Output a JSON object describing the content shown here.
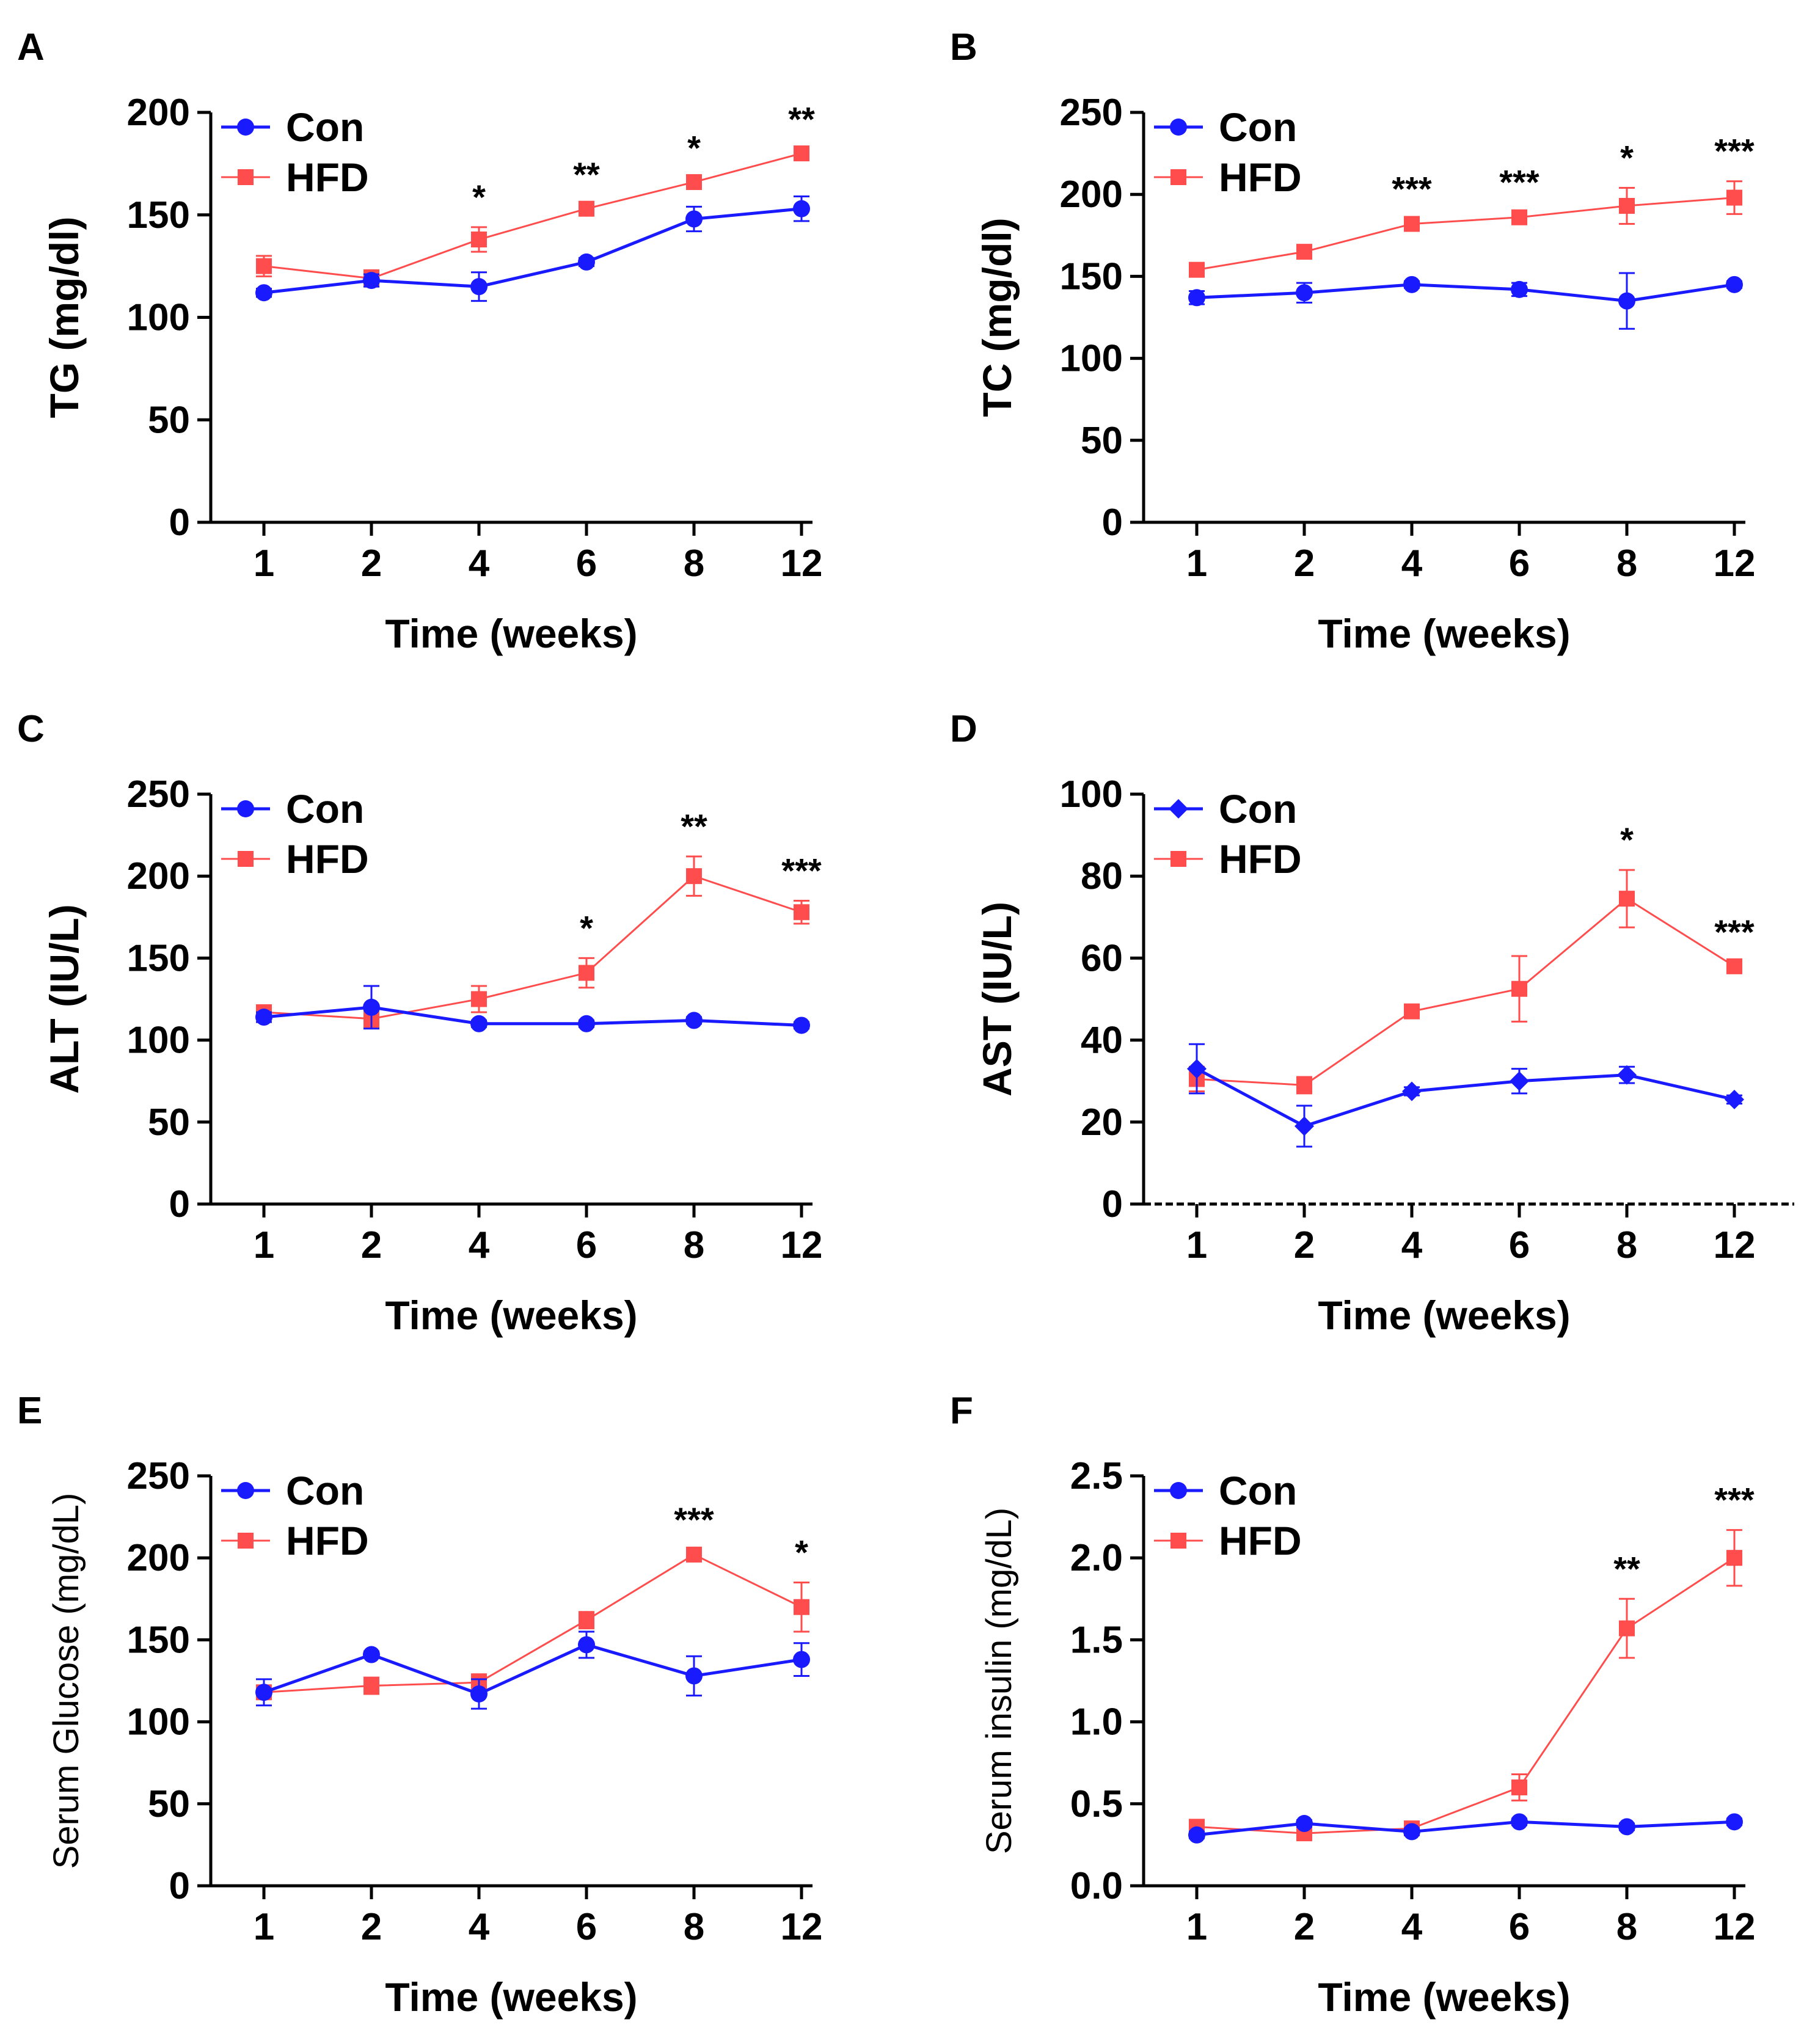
{
  "chart_data": [
    {
      "panel": "A",
      "type": "line",
      "xlabel": "Time (weeks)",
      "ylabel": "TG (mg/dl)",
      "categories": [
        "1",
        "2",
        "4",
        "6",
        "8",
        "12"
      ],
      "ylim": [
        0,
        200
      ],
      "yticks": [
        "0",
        "50",
        "100",
        "150",
        "200"
      ],
      "legend": "top-left",
      "series": [
        {
          "name": "Con",
          "color": "#1a1aff",
          "marker": "circle",
          "values": [
            112,
            118,
            115,
            127,
            148,
            153
          ],
          "errors": [
            2,
            3,
            7,
            2,
            6,
            6
          ]
        },
        {
          "name": "HFD",
          "color": "#ff4d4d",
          "marker": "square",
          "values": [
            125,
            119,
            138,
            153,
            166,
            180
          ],
          "errors": [
            5,
            4,
            6,
            2,
            2,
            2
          ]
        }
      ],
      "significance": [
        "",
        "",
        "*",
        "**",
        "*",
        "**"
      ]
    },
    {
      "panel": "B",
      "type": "line",
      "xlabel": "Time (weeks)",
      "ylabel": "TC (mg/dl)",
      "categories": [
        "1",
        "2",
        "4",
        "6",
        "8",
        "12"
      ],
      "ylim": [
        0,
        250
      ],
      "yticks": [
        "0",
        "50",
        "100",
        "150",
        "200",
        "250"
      ],
      "legend": "top-left",
      "series": [
        {
          "name": "Con",
          "color": "#1a1aff",
          "marker": "circle",
          "values": [
            137,
            140,
            145,
            142,
            135,
            145
          ],
          "errors": [
            4,
            6,
            2,
            4,
            17,
            2
          ]
        },
        {
          "name": "HFD",
          "color": "#ff4d4d",
          "marker": "square",
          "values": [
            154,
            165,
            182,
            186,
            193,
            198
          ],
          "errors": [
            2,
            2,
            3,
            3,
            11,
            10
          ]
        }
      ],
      "significance": [
        "",
        "",
        "***",
        "***",
        "*",
        "***"
      ]
    },
    {
      "panel": "C",
      "type": "line",
      "xlabel": "Time (weeks)",
      "ylabel": "ALT (IU/L)",
      "categories": [
        "1",
        "2",
        "4",
        "6",
        "8",
        "12"
      ],
      "ylim": [
        0,
        250
      ],
      "yticks": [
        "0",
        "50",
        "100",
        "150",
        "200",
        "250"
      ],
      "legend": "top-left",
      "series": [
        {
          "name": "Con",
          "color": "#1a1aff",
          "marker": "circle",
          "values": [
            114,
            120,
            110,
            110,
            112,
            109
          ],
          "errors": [
            3,
            13,
            2,
            2,
            2,
            2
          ]
        },
        {
          "name": "HFD",
          "color": "#ff4d4d",
          "marker": "square",
          "values": [
            117,
            113,
            125,
            141,
            200,
            178
          ],
          "errors": [
            2,
            5,
            8,
            9,
            12,
            7
          ]
        }
      ],
      "significance": [
        "",
        "",
        "",
        "*",
        "**",
        "***"
      ]
    },
    {
      "panel": "D",
      "type": "line",
      "xlabel": "Time (weeks)",
      "ylabel": "AST (IU/L)",
      "categories": [
        "1",
        "2",
        "4",
        "6",
        "8",
        "12"
      ],
      "ylim": [
        0,
        100
      ],
      "yticks": [
        "0",
        "20",
        "40",
        "60",
        "80",
        "100"
      ],
      "legend": "top-left",
      "series": [
        {
          "name": "Con",
          "color": "#1a1aff",
          "marker": "diamond",
          "values": [
            33,
            19,
            27.5,
            30,
            31.5,
            25.5
          ],
          "errors": [
            6,
            5,
            1,
            3,
            2,
            1
          ]
        },
        {
          "name": "HFD",
          "color": "#ff4d4d",
          "marker": "square",
          "values": [
            30.5,
            29,
            47,
            52.5,
            74.5,
            58
          ],
          "errors": [
            3,
            2,
            1,
            8,
            7,
            1
          ]
        }
      ],
      "significance": [
        "",
        "",
        "",
        "",
        "*",
        "***"
      ]
    },
    {
      "panel": "E",
      "type": "line",
      "xlabel": "Time (weeks)",
      "ylabel": "Serum Glucose (mg/dL)",
      "categories": [
        "1",
        "2",
        "4",
        "6",
        "8",
        "12"
      ],
      "ylim": [
        0,
        250
      ],
      "yticks": [
        "0",
        "50",
        "100",
        "150",
        "200",
        "250"
      ],
      "legend": "top-left",
      "series": [
        {
          "name": "Con",
          "color": "#1a1aff",
          "marker": "circle",
          "values": [
            118,
            141,
            117,
            147,
            128,
            138
          ],
          "errors": [
            8,
            2,
            9,
            8,
            12,
            10
          ]
        },
        {
          "name": "HFD",
          "color": "#ff4d4d",
          "marker": "square",
          "values": [
            118,
            122,
            124,
            162,
            202,
            170
          ],
          "errors": [
            4,
            5,
            5,
            5,
            3,
            15
          ]
        }
      ],
      "significance": [
        "",
        "",
        "",
        "",
        "***",
        "*"
      ]
    },
    {
      "panel": "F",
      "type": "line",
      "xlabel": "Time (weeks)",
      "ylabel": "Serum insulin (mg/dL)",
      "categories": [
        "1",
        "2",
        "4",
        "6",
        "8",
        "12"
      ],
      "ylim": [
        0,
        2.5
      ],
      "yticks": [
        "0.0",
        "0.5",
        "1.0",
        "1.5",
        "2.0",
        "2.5"
      ],
      "legend": "top-left",
      "series": [
        {
          "name": "Con",
          "color": "#1a1aff",
          "marker": "circle",
          "values": [
            0.31,
            0.38,
            0.33,
            0.39,
            0.36,
            0.39
          ],
          "errors": [
            0.02,
            0.02,
            0.02,
            0.02,
            0.02,
            0.02
          ]
        },
        {
          "name": "HFD",
          "color": "#ff4d4d",
          "marker": "square",
          "values": [
            0.36,
            0.32,
            0.35,
            0.6,
            1.57,
            2.0
          ],
          "errors": [
            0.02,
            0.03,
            0.02,
            0.08,
            0.18,
            0.17
          ]
        }
      ],
      "significance": [
        "",
        "",
        "",
        "",
        "**",
        "***"
      ]
    }
  ]
}
